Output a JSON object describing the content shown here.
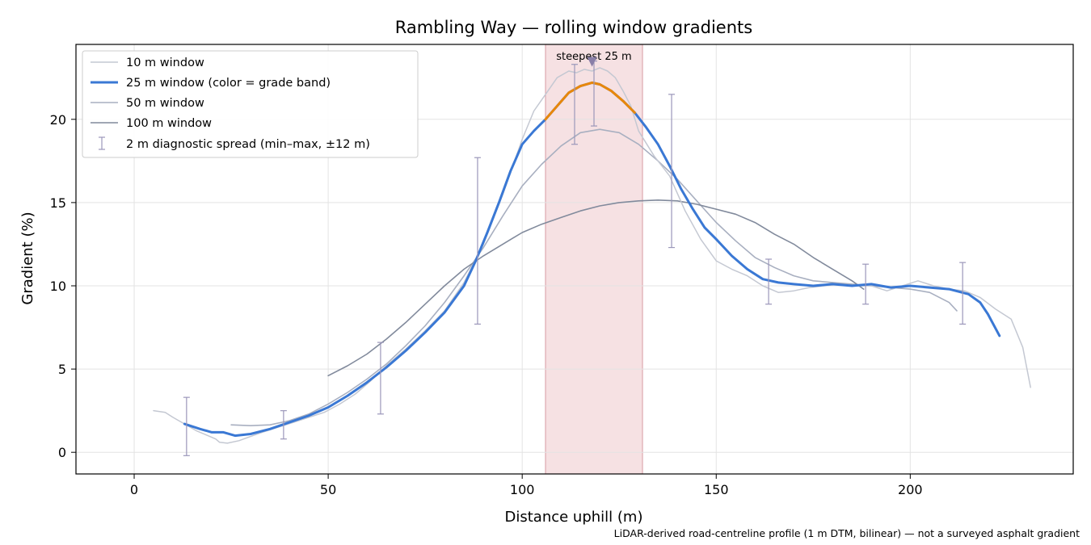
{
  "chart_data": {
    "type": "line",
    "title": "Rambling Way — rolling window gradients",
    "xlabel": "Distance uphill (m)",
    "ylabel": "Gradient (%)",
    "xlim": [
      -15,
      242
    ],
    "ylim": [
      -1.3,
      24.5
    ],
    "xticks": [
      0,
      50,
      100,
      150,
      200
    ],
    "yticks": [
      0,
      5,
      10,
      15,
      20
    ],
    "grid": true,
    "legend_position": "top-left",
    "footnote": "LiDAR-derived road-centreline profile (1 m DTM, bilinear) — not a surveyed asphalt gradient",
    "highlight": {
      "x_range": [
        106,
        131
      ],
      "label": "steepest 25 m",
      "marker": [
        118,
        23.5
      ],
      "color": "#e8b4ba"
    },
    "series": [
      {
        "name": "10 m window",
        "color": "#c4c8d2",
        "x": [
          5,
          8,
          10,
          13,
          16,
          19,
          21,
          22,
          24,
          27,
          30,
          33,
          37,
          41,
          45,
          49,
          53,
          57,
          61,
          65,
          70,
          75,
          80,
          85,
          90,
          95,
          100,
          103,
          106,
          109,
          112,
          114,
          116,
          118,
          120,
          122,
          124,
          126,
          128,
          130,
          134,
          138,
          142,
          146,
          150,
          154,
          158,
          162,
          166,
          170,
          174,
          178,
          182,
          186,
          190,
          194,
          198,
          202,
          206,
          210,
          214,
          218,
          222,
          226,
          229,
          231
        ],
        "y": [
          2.5,
          2.4,
          2.1,
          1.7,
          1.3,
          1.0,
          0.8,
          0.6,
          0.55,
          0.7,
          0.95,
          1.2,
          1.5,
          1.8,
          2.1,
          2.4,
          2.9,
          3.5,
          4.3,
          5.2,
          6.2,
          7.3,
          8.5,
          10.2,
          12.5,
          15.5,
          18.8,
          20.5,
          21.5,
          22.5,
          22.9,
          22.8,
          23.0,
          22.9,
          23.1,
          22.9,
          22.5,
          21.7,
          20.8,
          19.3,
          17.8,
          16.6,
          14.5,
          12.8,
          11.5,
          11.0,
          10.6,
          10.0,
          9.6,
          9.7,
          9.9,
          10.0,
          10.1,
          10.0,
          10.0,
          9.7,
          10.0,
          10.3,
          10.0,
          9.8,
          9.7,
          9.3,
          8.6,
          8.0,
          6.3,
          3.9
        ]
      },
      {
        "name": "25 m window (color = grade band)",
        "color": "#3a78d4",
        "band_color": "#e8870a",
        "band_threshold": 20,
        "x": [
          13,
          17,
          20,
          23,
          26,
          30,
          35,
          40,
          45,
          50,
          55,
          60,
          65,
          70,
          75,
          80,
          85,
          88,
          91,
          94,
          97,
          100,
          103,
          106,
          109,
          112,
          115,
          118,
          120,
          123,
          126,
          129,
          132,
          135,
          138,
          141,
          144,
          147,
          150,
          154,
          158,
          162,
          166,
          170,
          175,
          180,
          185,
          190,
          195,
          200,
          205,
          210,
          215,
          218,
          220,
          223
        ],
        "y": [
          1.7,
          1.4,
          1.2,
          1.2,
          1.0,
          1.1,
          1.4,
          1.8,
          2.2,
          2.7,
          3.4,
          4.2,
          5.1,
          6.1,
          7.2,
          8.4,
          10.0,
          11.5,
          13.2,
          15.0,
          16.9,
          18.5,
          19.3,
          20.0,
          20.8,
          21.6,
          22.0,
          22.2,
          22.1,
          21.7,
          21.1,
          20.4,
          19.5,
          18.5,
          17.2,
          15.8,
          14.6,
          13.5,
          12.8,
          11.8,
          11.0,
          10.4,
          10.2,
          10.1,
          10.0,
          10.1,
          10.0,
          10.1,
          9.9,
          10.0,
          9.9,
          9.8,
          9.5,
          9.0,
          8.3,
          7.0
        ]
      },
      {
        "name": "50 m window",
        "color": "#a8afc0",
        "x": [
          25,
          30,
          35,
          40,
          45,
          50,
          55,
          60,
          65,
          70,
          75,
          80,
          85,
          90,
          95,
          100,
          105,
          110,
          115,
          120,
          125,
          130,
          135,
          140,
          145,
          150,
          155,
          160,
          165,
          170,
          175,
          180,
          185,
          190,
          195,
          200,
          205,
          210,
          212
        ],
        "y": [
          1.65,
          1.6,
          1.65,
          1.9,
          2.3,
          2.9,
          3.6,
          4.4,
          5.3,
          6.4,
          7.6,
          9.0,
          10.6,
          12.3,
          14.2,
          16.0,
          17.3,
          18.4,
          19.2,
          19.4,
          19.2,
          18.5,
          17.5,
          16.4,
          15.1,
          13.8,
          12.7,
          11.7,
          11.1,
          10.6,
          10.3,
          10.2,
          10.1,
          10.0,
          9.9,
          9.8,
          9.6,
          9.0,
          8.5
        ]
      },
      {
        "name": "100 m window",
        "color": "#818a9c",
        "x": [
          50,
          55,
          60,
          65,
          70,
          75,
          80,
          85,
          90,
          95,
          100,
          105,
          110,
          115,
          120,
          125,
          130,
          135,
          140,
          145,
          150,
          155,
          160,
          165,
          170,
          175,
          180,
          185,
          188
        ],
        "y": [
          4.6,
          5.2,
          5.9,
          6.8,
          7.8,
          8.9,
          10.0,
          11.0,
          11.8,
          12.5,
          13.2,
          13.7,
          14.1,
          14.5,
          14.8,
          15.0,
          15.1,
          15.15,
          15.1,
          14.9,
          14.6,
          14.3,
          13.8,
          13.1,
          12.5,
          11.7,
          11.0,
          10.3,
          9.8
        ]
      }
    ],
    "error_bars": {
      "name": "2 m diagnostic spread (min–max, ±12 m)",
      "color": "#9b97ba",
      "points": [
        {
          "x": 13.5,
          "low": -0.2,
          "high": 3.3
        },
        {
          "x": 38.5,
          "low": 0.8,
          "high": 2.5
        },
        {
          "x": 63.5,
          "low": 2.3,
          "high": 6.6
        },
        {
          "x": 88.5,
          "low": 7.7,
          "high": 17.7
        },
        {
          "x": 113.5,
          "low": 18.5,
          "high": 23.3
        },
        {
          "x": 118.5,
          "low": 19.6,
          "high": 23.5
        },
        {
          "x": 138.5,
          "low": 12.3,
          "high": 21.5
        },
        {
          "x": 163.5,
          "low": 8.9,
          "high": 11.6
        },
        {
          "x": 188.5,
          "low": 8.9,
          "high": 11.3
        },
        {
          "x": 213.5,
          "low": 7.7,
          "high": 11.4
        }
      ]
    }
  }
}
